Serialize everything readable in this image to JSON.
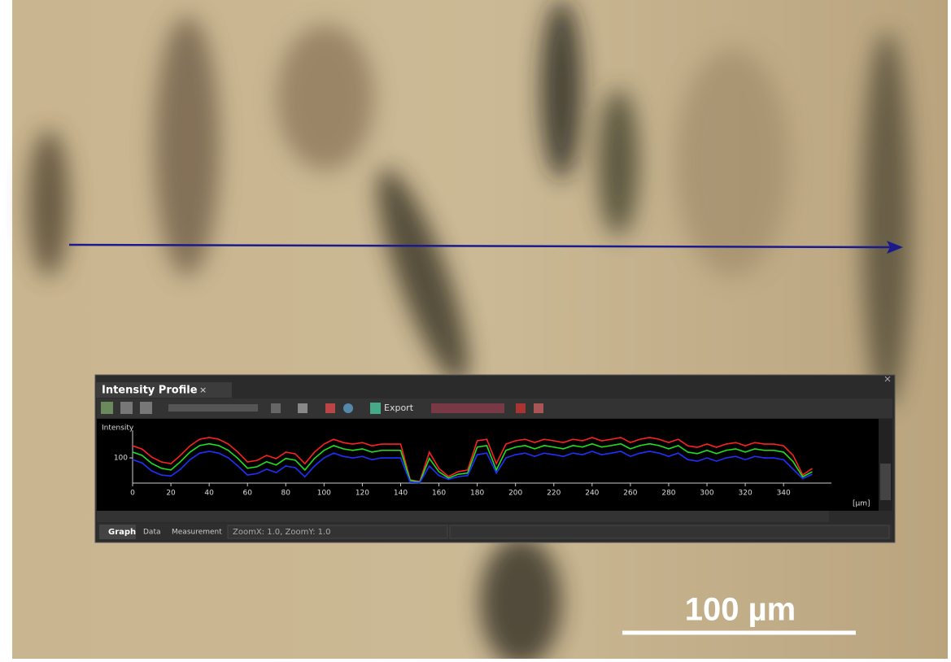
{
  "panel": {
    "title": "Intensity Profile",
    "close": "×",
    "export": "Export",
    "tabs": [
      "Graph",
      "Data",
      "Measurement"
    ],
    "status": "ZoomX: 1.0, ZoomY: 1.0",
    "x_unit": "[µm]"
  },
  "scale_bar": {
    "label": "100 µm"
  },
  "chart_data": {
    "type": "line",
    "y_label": "Intensity",
    "x": [
      0,
      5,
      10,
      15,
      20,
      25,
      30,
      35,
      40,
      45,
      50,
      55,
      60,
      65,
      70,
      75,
      80,
      85,
      90,
      95,
      100,
      105,
      110,
      115,
      120,
      125,
      130,
      135,
      140,
      145,
      150,
      155,
      160,
      165,
      170,
      175,
      180,
      185,
      190,
      195,
      200,
      205,
      210,
      215,
      220,
      225,
      230,
      235,
      240,
      245,
      250,
      255,
      260,
      265,
      270,
      275,
      280,
      285,
      290,
      295,
      300,
      305,
      310,
      315,
      320,
      325,
      330,
      335,
      340,
      345,
      350,
      355
    ],
    "series": [
      {
        "color": "#ff2020",
        "values": [
          148,
          135,
          103,
          84,
          77,
          110,
          148,
          174,
          181,
          174,
          155,
          123,
          84,
          90,
          110,
          97,
          123,
          116,
          77,
          123,
          155,
          174,
          161,
          155,
          161,
          148,
          155,
          155,
          155,
          13,
          6,
          123,
          58,
          26,
          45,
          52,
          168,
          174,
          77,
          155,
          168,
          174,
          161,
          174,
          168,
          161,
          174,
          168,
          181,
          168,
          174,
          181,
          161,
          174,
          181,
          174,
          161,
          174,
          148,
          142,
          155,
          142,
          155,
          161,
          148,
          161,
          155,
          155,
          148,
          110,
          32,
          58
        ]
      },
      {
        "color": "#20e020",
        "values": [
          123,
          110,
          78,
          59,
          52,
          85,
          123,
          149,
          156,
          149,
          130,
          98,
          59,
          65,
          85,
          72,
          98,
          91,
          52,
          98,
          130,
          149,
          136,
          130,
          136,
          123,
          130,
          130,
          130,
          10,
          4,
          98,
          45,
          20,
          35,
          40,
          143,
          149,
          52,
          130,
          143,
          149,
          136,
          149,
          143,
          136,
          149,
          143,
          156,
          143,
          149,
          156,
          136,
          149,
          156,
          149,
          136,
          149,
          123,
          117,
          130,
          117,
          130,
          136,
          123,
          136,
          130,
          130,
          123,
          85,
          25,
          45
        ]
      },
      {
        "color": "#2030ff",
        "values": [
          93,
          80,
          48,
          32,
          28,
          55,
          93,
          119,
          126,
          119,
          100,
          68,
          32,
          38,
          55,
          42,
          68,
          61,
          25,
          68,
          100,
          119,
          106,
          100,
          106,
          93,
          100,
          100,
          100,
          3,
          2,
          68,
          30,
          15,
          25,
          30,
          113,
          119,
          40,
          100,
          113,
          119,
          106,
          119,
          113,
          106,
          119,
          113,
          126,
          113,
          119,
          126,
          106,
          119,
          126,
          119,
          106,
          119,
          93,
          87,
          100,
          87,
          100,
          106,
          93,
          106,
          100,
          100,
          93,
          55,
          18,
          35
        ]
      }
    ],
    "xlim": [
      0,
      365
    ],
    "xticks": [
      0,
      20,
      40,
      60,
      80,
      100,
      120,
      140,
      160,
      180,
      200,
      220,
      240,
      260,
      280,
      300,
      320,
      340
    ],
    "ylim": [
      0,
      210
    ],
    "yticks": [
      100
    ]
  }
}
